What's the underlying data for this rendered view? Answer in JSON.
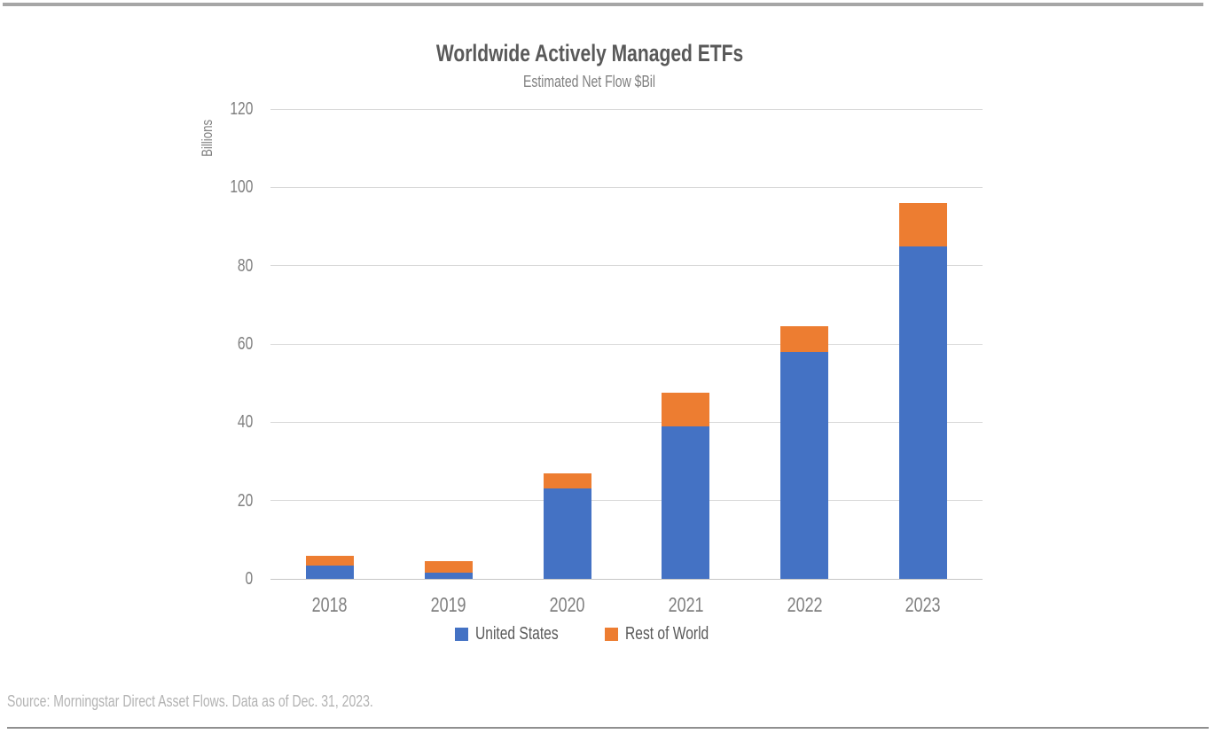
{
  "page": {
    "background": "#ffffff",
    "top_rule_color": "#a6a6a6",
    "bottom_rule_color": "#8f8f8f",
    "source_note": "Source: Morningstar Direct Asset Flows. Data as of Dec. 31, 2023."
  },
  "chart_data": {
    "type": "bar",
    "stacked": true,
    "title": "Worldwide Actively Managed ETFs",
    "subtitle": "Estimated Net Flow $Bil",
    "ylabel": "Billions",
    "xlabel": "",
    "categories": [
      "2018",
      "2019",
      "2020",
      "2021",
      "2022",
      "2023"
    ],
    "series": [
      {
        "name": "United States",
        "color": "#4472C4",
        "values": [
          3.5,
          1.5,
          23,
          39,
          58,
          85
        ]
      },
      {
        "name": "Rest of World",
        "color": "#ED7D31",
        "values": [
          2.5,
          3.0,
          4,
          8.5,
          6.5,
          11
        ]
      }
    ],
    "ylim": [
      0,
      120
    ],
    "yticks": [
      0,
      20,
      40,
      60,
      80,
      100,
      120
    ],
    "grid": true,
    "gridline_color": "#d9d9d9",
    "axis_text_color": "#7f7f7f",
    "title_color": "#595959",
    "legend_position": "bottom"
  }
}
